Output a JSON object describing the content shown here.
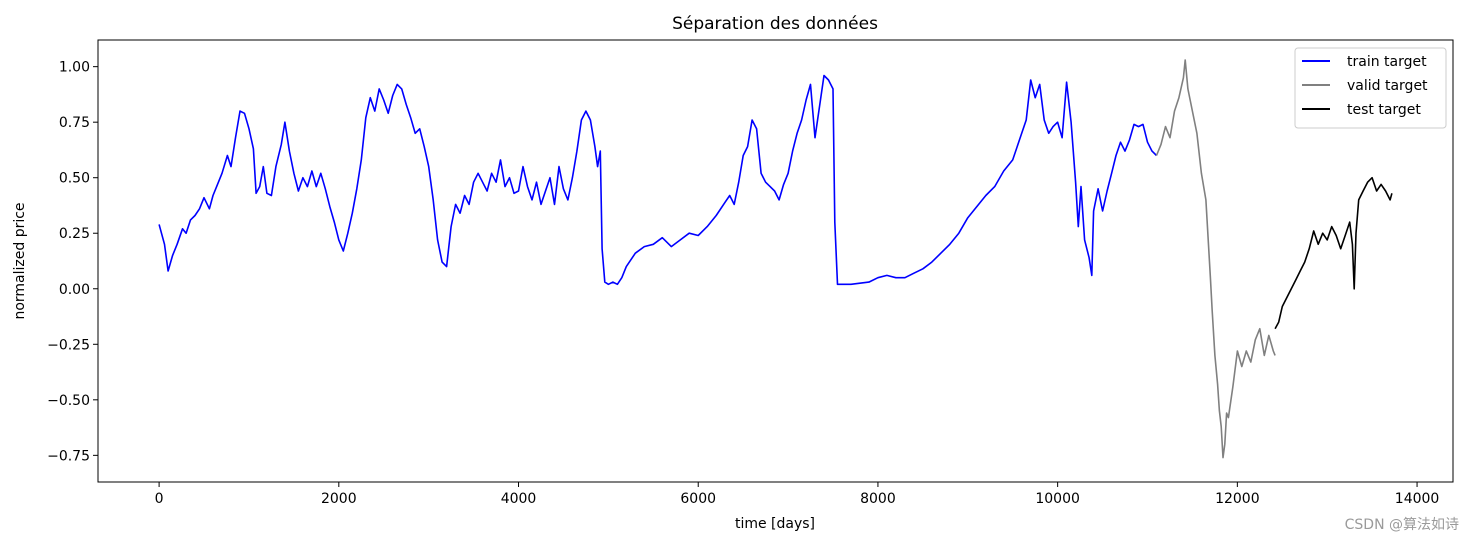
{
  "watermark": "CSDN @算法如诗",
  "chart_data": {
    "type": "line",
    "title": "Séparation des données",
    "xlabel": "time [days]",
    "ylabel": "normalized price",
    "xlim": [
      -680,
      14400
    ],
    "ylim": [
      -0.87,
      1.12
    ],
    "xticks": [
      0,
      2000,
      4000,
      6000,
      8000,
      10000,
      12000,
      14000
    ],
    "xtick_labels": [
      "0",
      "2000",
      "4000",
      "6000",
      "8000",
      "10000",
      "12000",
      "14000"
    ],
    "yticks": [
      1.0,
      0.75,
      0.5,
      0.25,
      0.0,
      -0.25,
      -0.5,
      -0.75
    ],
    "ytick_labels": [
      "1.00",
      "0.75",
      "0.50",
      "0.25",
      "0.00",
      "−0.25",
      "−0.50",
      "−0.75"
    ],
    "grid": false,
    "legend_position": "top-right",
    "series": [
      {
        "name": "train target",
        "color": "#0000ff",
        "points": [
          [
            0,
            0.29
          ],
          [
            60,
            0.2
          ],
          [
            100,
            0.08
          ],
          [
            150,
            0.15
          ],
          [
            200,
            0.2
          ],
          [
            260,
            0.27
          ],
          [
            300,
            0.25
          ],
          [
            350,
            0.31
          ],
          [
            400,
            0.33
          ],
          [
            450,
            0.36
          ],
          [
            500,
            0.41
          ],
          [
            560,
            0.36
          ],
          [
            600,
            0.42
          ],
          [
            650,
            0.47
          ],
          [
            700,
            0.52
          ],
          [
            760,
            0.6
          ],
          [
            800,
            0.55
          ],
          [
            850,
            0.68
          ],
          [
            900,
            0.8
          ],
          [
            950,
            0.79
          ],
          [
            1000,
            0.72
          ],
          [
            1050,
            0.63
          ],
          [
            1080,
            0.43
          ],
          [
            1120,
            0.46
          ],
          [
            1160,
            0.55
          ],
          [
            1200,
            0.43
          ],
          [
            1250,
            0.42
          ],
          [
            1300,
            0.55
          ],
          [
            1360,
            0.65
          ],
          [
            1400,
            0.75
          ],
          [
            1450,
            0.62
          ],
          [
            1500,
            0.52
          ],
          [
            1550,
            0.44
          ],
          [
            1600,
            0.5
          ],
          [
            1650,
            0.46
          ],
          [
            1700,
            0.53
          ],
          [
            1750,
            0.46
          ],
          [
            1800,
            0.52
          ],
          [
            1850,
            0.45
          ],
          [
            1900,
            0.37
          ],
          [
            1950,
            0.3
          ],
          [
            2000,
            0.22
          ],
          [
            2050,
            0.17
          ],
          [
            2100,
            0.25
          ],
          [
            2150,
            0.34
          ],
          [
            2200,
            0.45
          ],
          [
            2250,
            0.58
          ],
          [
            2300,
            0.77
          ],
          [
            2350,
            0.86
          ],
          [
            2400,
            0.8
          ],
          [
            2450,
            0.9
          ],
          [
            2500,
            0.85
          ],
          [
            2550,
            0.79
          ],
          [
            2600,
            0.87
          ],
          [
            2650,
            0.92
          ],
          [
            2700,
            0.9
          ],
          [
            2750,
            0.83
          ],
          [
            2800,
            0.77
          ],
          [
            2850,
            0.7
          ],
          [
            2900,
            0.72
          ],
          [
            2950,
            0.64
          ],
          [
            3000,
            0.55
          ],
          [
            3050,
            0.4
          ],
          [
            3100,
            0.22
          ],
          [
            3150,
            0.12
          ],
          [
            3200,
            0.1
          ],
          [
            3250,
            0.28
          ],
          [
            3300,
            0.38
          ],
          [
            3350,
            0.34
          ],
          [
            3400,
            0.42
          ],
          [
            3450,
            0.38
          ],
          [
            3500,
            0.48
          ],
          [
            3550,
            0.52
          ],
          [
            3600,
            0.48
          ],
          [
            3650,
            0.44
          ],
          [
            3700,
            0.52
          ],
          [
            3750,
            0.48
          ],
          [
            3800,
            0.58
          ],
          [
            3850,
            0.46
          ],
          [
            3900,
            0.5
          ],
          [
            3950,
            0.43
          ],
          [
            4000,
            0.44
          ],
          [
            4050,
            0.55
          ],
          [
            4100,
            0.46
          ],
          [
            4150,
            0.4
          ],
          [
            4200,
            0.48
          ],
          [
            4250,
            0.38
          ],
          [
            4300,
            0.44
          ],
          [
            4350,
            0.5
          ],
          [
            4400,
            0.38
          ],
          [
            4450,
            0.55
          ],
          [
            4500,
            0.45
          ],
          [
            4550,
            0.4
          ],
          [
            4600,
            0.5
          ],
          [
            4650,
            0.62
          ],
          [
            4700,
            0.76
          ],
          [
            4750,
            0.8
          ],
          [
            4800,
            0.76
          ],
          [
            4850,
            0.64
          ],
          [
            4880,
            0.55
          ],
          [
            4910,
            0.62
          ],
          [
            4930,
            0.18
          ],
          [
            4960,
            0.03
          ],
          [
            5000,
            0.02
          ],
          [
            5050,
            0.03
          ],
          [
            5100,
            0.02
          ],
          [
            5150,
            0.05
          ],
          [
            5200,
            0.1
          ],
          [
            5300,
            0.16
          ],
          [
            5400,
            0.19
          ],
          [
            5500,
            0.2
          ],
          [
            5600,
            0.23
          ],
          [
            5700,
            0.19
          ],
          [
            5800,
            0.22
          ],
          [
            5900,
            0.25
          ],
          [
            6000,
            0.24
          ],
          [
            6100,
            0.28
          ],
          [
            6200,
            0.33
          ],
          [
            6300,
            0.39
          ],
          [
            6350,
            0.42
          ],
          [
            6400,
            0.38
          ],
          [
            6450,
            0.48
          ],
          [
            6500,
            0.6
          ],
          [
            6550,
            0.64
          ],
          [
            6600,
            0.76
          ],
          [
            6650,
            0.72
          ],
          [
            6700,
            0.52
          ],
          [
            6750,
            0.48
          ],
          [
            6800,
            0.46
          ],
          [
            6850,
            0.44
          ],
          [
            6900,
            0.4
          ],
          [
            6950,
            0.47
          ],
          [
            7000,
            0.52
          ],
          [
            7050,
            0.62
          ],
          [
            7100,
            0.7
          ],
          [
            7150,
            0.76
          ],
          [
            7200,
            0.85
          ],
          [
            7250,
            0.92
          ],
          [
            7300,
            0.68
          ],
          [
            7350,
            0.82
          ],
          [
            7400,
            0.96
          ],
          [
            7450,
            0.94
          ],
          [
            7500,
            0.9
          ],
          [
            7520,
            0.3
          ],
          [
            7550,
            0.02
          ],
          [
            7700,
            0.02
          ],
          [
            7900,
            0.03
          ],
          [
            8000,
            0.05
          ],
          [
            8100,
            0.06
          ],
          [
            8200,
            0.05
          ],
          [
            8300,
            0.05
          ],
          [
            8400,
            0.07
          ],
          [
            8500,
            0.09
          ],
          [
            8600,
            0.12
          ],
          [
            8700,
            0.16
          ],
          [
            8800,
            0.2
          ],
          [
            8900,
            0.25
          ],
          [
            9000,
            0.32
          ],
          [
            9100,
            0.37
          ],
          [
            9200,
            0.42
          ],
          [
            9300,
            0.46
          ],
          [
            9400,
            0.53
          ],
          [
            9500,
            0.58
          ],
          [
            9600,
            0.7
          ],
          [
            9650,
            0.76
          ],
          [
            9700,
            0.94
          ],
          [
            9750,
            0.86
          ],
          [
            9800,
            0.92
          ],
          [
            9850,
            0.76
          ],
          [
            9900,
            0.7
          ],
          [
            9950,
            0.73
          ],
          [
            10000,
            0.75
          ],
          [
            10050,
            0.68
          ],
          [
            10100,
            0.93
          ],
          [
            10150,
            0.75
          ],
          [
            10200,
            0.48
          ],
          [
            10230,
            0.28
          ],
          [
            10260,
            0.46
          ],
          [
            10300,
            0.22
          ],
          [
            10350,
            0.14
          ],
          [
            10380,
            0.06
          ],
          [
            10400,
            0.35
          ],
          [
            10450,
            0.45
          ],
          [
            10500,
            0.35
          ],
          [
            10550,
            0.44
          ],
          [
            10600,
            0.52
          ],
          [
            10650,
            0.6
          ],
          [
            10700,
            0.66
          ],
          [
            10750,
            0.62
          ],
          [
            10800,
            0.67
          ],
          [
            10850,
            0.74
          ],
          [
            10900,
            0.73
          ],
          [
            10950,
            0.74
          ],
          [
            11000,
            0.66
          ],
          [
            11050,
            0.62
          ],
          [
            11100,
            0.6
          ]
        ]
      },
      {
        "name": "valid target",
        "color": "#808080",
        "points": [
          [
            11100,
            0.6
          ],
          [
            11150,
            0.65
          ],
          [
            11200,
            0.73
          ],
          [
            11250,
            0.68
          ],
          [
            11300,
            0.8
          ],
          [
            11350,
            0.86
          ],
          [
            11400,
            0.95
          ],
          [
            11420,
            1.03
          ],
          [
            11450,
            0.9
          ],
          [
            11500,
            0.8
          ],
          [
            11550,
            0.7
          ],
          [
            11600,
            0.52
          ],
          [
            11650,
            0.4
          ],
          [
            11700,
            0.05
          ],
          [
            11720,
            -0.1
          ],
          [
            11750,
            -0.3
          ],
          [
            11780,
            -0.43
          ],
          [
            11800,
            -0.55
          ],
          [
            11820,
            -0.62
          ],
          [
            11840,
            -0.76
          ],
          [
            11860,
            -0.7
          ],
          [
            11880,
            -0.56
          ],
          [
            11900,
            -0.58
          ],
          [
            11950,
            -0.44
          ],
          [
            12000,
            -0.28
          ],
          [
            12050,
            -0.35
          ],
          [
            12100,
            -0.28
          ],
          [
            12150,
            -0.33
          ],
          [
            12200,
            -0.23
          ],
          [
            12250,
            -0.18
          ],
          [
            12300,
            -0.3
          ],
          [
            12350,
            -0.21
          ],
          [
            12400,
            -0.28
          ],
          [
            12420,
            -0.3
          ]
        ]
      },
      {
        "name": "test target",
        "color": "#000000",
        "points": [
          [
            12420,
            -0.18
          ],
          [
            12460,
            -0.15
          ],
          [
            12500,
            -0.08
          ],
          [
            12550,
            -0.04
          ],
          [
            12600,
            0.0
          ],
          [
            12650,
            0.04
          ],
          [
            12700,
            0.08
          ],
          [
            12750,
            0.12
          ],
          [
            12800,
            0.18
          ],
          [
            12850,
            0.26
          ],
          [
            12900,
            0.2
          ],
          [
            12950,
            0.25
          ],
          [
            13000,
            0.22
          ],
          [
            13050,
            0.28
          ],
          [
            13100,
            0.24
          ],
          [
            13150,
            0.18
          ],
          [
            13200,
            0.24
          ],
          [
            13250,
            0.3
          ],
          [
            13280,
            0.2
          ],
          [
            13300,
            0.0
          ],
          [
            13320,
            0.25
          ],
          [
            13350,
            0.4
          ],
          [
            13400,
            0.44
          ],
          [
            13450,
            0.48
          ],
          [
            13500,
            0.5
          ],
          [
            13550,
            0.44
          ],
          [
            13600,
            0.47
          ],
          [
            13650,
            0.44
          ],
          [
            13700,
            0.4
          ],
          [
            13720,
            0.43
          ]
        ]
      }
    ]
  }
}
